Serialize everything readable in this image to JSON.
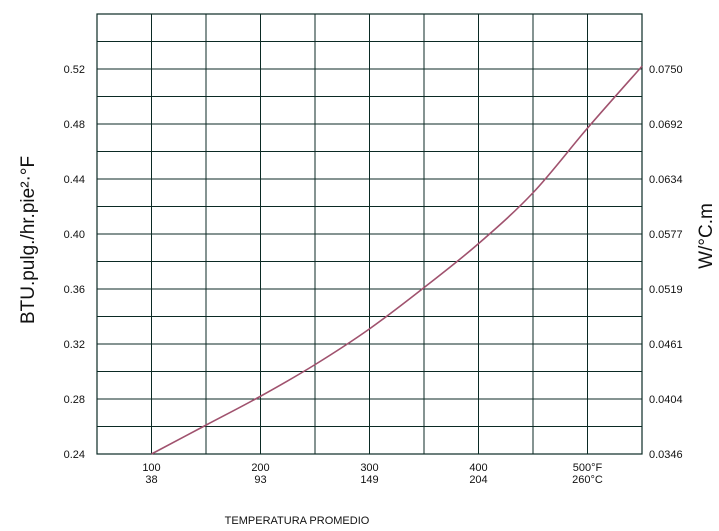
{
  "chart_data": {
    "type": "line",
    "xlabel": "TEMPERATURA PROMEDIO",
    "ylabel_left": "BTU.pulg./hr.pie²·°F",
    "ylabel_right": "W/°C.m",
    "xlim": [
      50,
      550
    ],
    "ylim": [
      0.24,
      0.56
    ],
    "x_ticks": [
      {
        "value": 100,
        "label_f": "100",
        "label_c": "38"
      },
      {
        "value": 200,
        "label_f": "200",
        "label_c": "93"
      },
      {
        "value": 300,
        "label_f": "300",
        "label_c": "149"
      },
      {
        "value": 400,
        "label_f": "400",
        "label_c": "204"
      },
      {
        "value": 500,
        "label_f": "500°F",
        "label_c": "260°C"
      }
    ],
    "y_ticks_left": [
      {
        "value": 0.24,
        "label": "0.24"
      },
      {
        "value": 0.28,
        "label": "0.28"
      },
      {
        "value": 0.32,
        "label": "0.32"
      },
      {
        "value": 0.36,
        "label": "0.36"
      },
      {
        "value": 0.4,
        "label": "0.40"
      },
      {
        "value": 0.44,
        "label": "0.44"
      },
      {
        "value": 0.48,
        "label": "0.48"
      },
      {
        "value": 0.52,
        "label": "0.52"
      }
    ],
    "y_ticks_right": [
      {
        "value": 0.24,
        "label": "0.0346"
      },
      {
        "value": 0.28,
        "label": "0.0404"
      },
      {
        "value": 0.32,
        "label": "0.0461"
      },
      {
        "value": 0.36,
        "label": "0.0519"
      },
      {
        "value": 0.4,
        "label": "0.0577"
      },
      {
        "value": 0.44,
        "label": "0.0634"
      },
      {
        "value": 0.48,
        "label": "0.0692"
      },
      {
        "value": 0.52,
        "label": "0.0750"
      }
    ],
    "grid": true,
    "series": [
      {
        "color": "#a0526e",
        "x": [
          100,
          150,
          200,
          250,
          300,
          350,
          400,
          450,
          500,
          550
        ],
        "y": [
          0.24,
          0.261,
          0.282,
          0.305,
          0.331,
          0.361,
          0.393,
          0.43,
          0.477,
          0.522
        ]
      }
    ]
  }
}
